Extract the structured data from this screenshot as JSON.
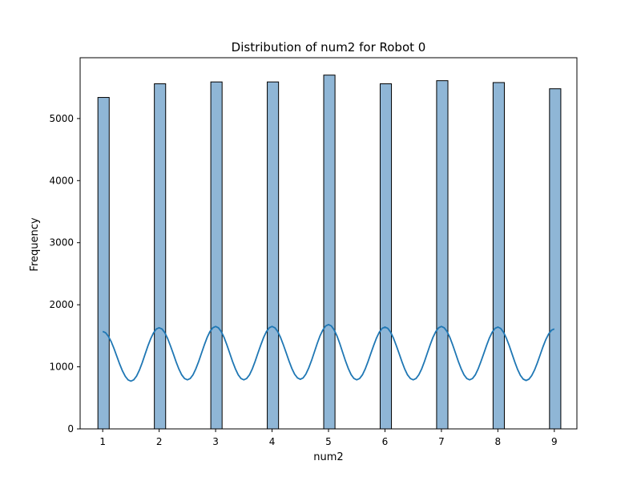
{
  "chart_data": {
    "type": "bar",
    "title": "Distribution of num2 for Robot 0",
    "xlabel": "num2",
    "ylabel": "Frequency",
    "xlim": [
      0.6,
      9.4
    ],
    "ylim": [
      0,
      5980
    ],
    "xticks": [
      1,
      2,
      3,
      4,
      5,
      6,
      7,
      8,
      9
    ],
    "yticks": [
      0,
      1000,
      2000,
      3000,
      4000,
      5000
    ],
    "bar_width": 0.2,
    "grid": false,
    "legend": false,
    "colors": {
      "bar_fill": "#8fb6d6",
      "bar_edge": "#000000",
      "kde_line": "#1f77b4"
    },
    "bars": [
      {
        "x": 1,
        "value": 5340
      },
      {
        "x": 2,
        "value": 5560
      },
      {
        "x": 3,
        "value": 5590
      },
      {
        "x": 4,
        "value": 5590
      },
      {
        "x": 5,
        "value": 5700
      },
      {
        "x": 6,
        "value": 5560
      },
      {
        "x": 7,
        "value": 5610
      },
      {
        "x": 8,
        "value": 5580
      },
      {
        "x": 9,
        "value": 5480
      }
    ],
    "kde": {
      "peaks": [
        1570,
        1630,
        1650,
        1650,
        1680,
        1640,
        1650,
        1640,
        1610
      ],
      "troughs": [
        770,
        790,
        790,
        800,
        790,
        790,
        790,
        780
      ]
    }
  }
}
